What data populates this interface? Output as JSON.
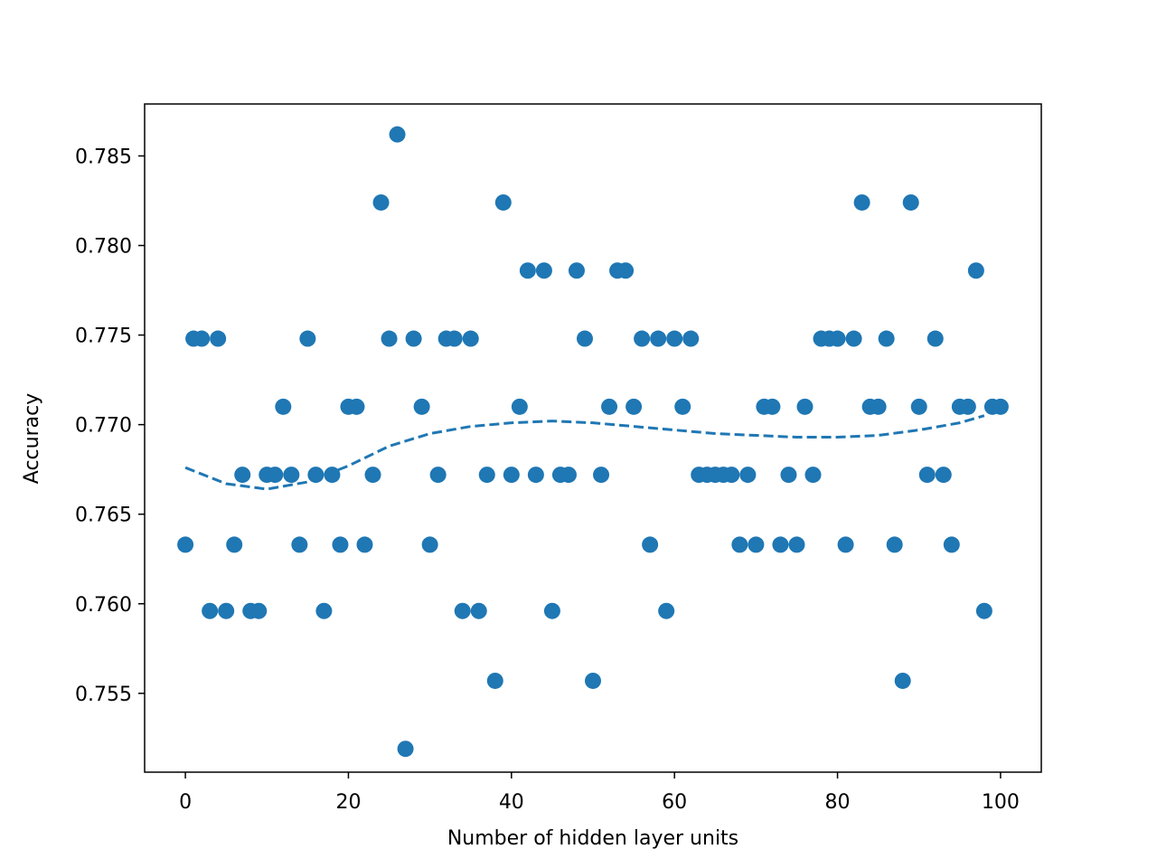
{
  "chart_data": {
    "type": "scatter",
    "xlabel": "Number of hidden layer units",
    "ylabel": "Accuracy",
    "xlim": [
      -5,
      105
    ],
    "ylim": [
      0.7506,
      0.7879
    ],
    "x_ticks": [
      0,
      20,
      40,
      60,
      80,
      100
    ],
    "x_tick_labels": [
      "0",
      "20",
      "40",
      "60",
      "80",
      "100"
    ],
    "y_ticks": [
      0.755,
      0.76,
      0.765,
      0.77,
      0.775,
      0.78,
      0.785
    ],
    "y_tick_labels": [
      "0.755",
      "0.760",
      "0.765",
      "0.770",
      "0.775",
      "0.780",
      "0.785"
    ],
    "grid": false,
    "point_color": "#1f77b4",
    "trend_color": "#1f77b4",
    "series": [
      {
        "values": [
          [
            0,
            0.7633
          ],
          [
            1,
            0.7748
          ],
          [
            2,
            0.7748
          ],
          [
            3,
            0.7596
          ],
          [
            4,
            0.7748
          ],
          [
            5,
            0.7596
          ],
          [
            6,
            0.7633
          ],
          [
            7,
            0.7672
          ],
          [
            8,
            0.7596
          ],
          [
            9,
            0.7596
          ],
          [
            10,
            0.7672
          ],
          [
            11,
            0.7672
          ],
          [
            12,
            0.771
          ],
          [
            13,
            0.7672
          ],
          [
            14,
            0.7633
          ],
          [
            15,
            0.7748
          ],
          [
            16,
            0.7672
          ],
          [
            17,
            0.7596
          ],
          [
            18,
            0.7672
          ],
          [
            19,
            0.7633
          ],
          [
            20,
            0.771
          ],
          [
            21,
            0.771
          ],
          [
            22,
            0.7633
          ],
          [
            23,
            0.7672
          ],
          [
            24,
            0.7824
          ],
          [
            25,
            0.7748
          ],
          [
            26,
            0.7862
          ],
          [
            27,
            0.7519
          ],
          [
            28,
            0.7748
          ],
          [
            29,
            0.771
          ],
          [
            30,
            0.7633
          ],
          [
            31,
            0.7672
          ],
          [
            32,
            0.7748
          ],
          [
            33,
            0.7748
          ],
          [
            34,
            0.7596
          ],
          [
            35,
            0.7748
          ],
          [
            36,
            0.7596
          ],
          [
            37,
            0.7672
          ],
          [
            38,
            0.7557
          ],
          [
            39,
            0.7824
          ],
          [
            40,
            0.7672
          ],
          [
            41,
            0.771
          ],
          [
            42,
            0.7786
          ],
          [
            43,
            0.7672
          ],
          [
            44,
            0.7786
          ],
          [
            45,
            0.7596
          ],
          [
            46,
            0.7672
          ],
          [
            47,
            0.7672
          ],
          [
            48,
            0.7786
          ],
          [
            49,
            0.7748
          ],
          [
            50,
            0.7557
          ],
          [
            51,
            0.7672
          ],
          [
            52,
            0.771
          ],
          [
            53,
            0.7786
          ],
          [
            54,
            0.7786
          ],
          [
            55,
            0.771
          ],
          [
            56,
            0.7748
          ],
          [
            57,
            0.7633
          ],
          [
            58,
            0.7748
          ],
          [
            59,
            0.7596
          ],
          [
            60,
            0.7748
          ],
          [
            61,
            0.771
          ],
          [
            62,
            0.7748
          ],
          [
            63,
            0.7672
          ],
          [
            64,
            0.7672
          ],
          [
            65,
            0.7672
          ],
          [
            66,
            0.7672
          ],
          [
            67,
            0.7672
          ],
          [
            68,
            0.7633
          ],
          [
            69,
            0.7672
          ],
          [
            70,
            0.7633
          ],
          [
            71,
            0.771
          ],
          [
            72,
            0.771
          ],
          [
            73,
            0.7633
          ],
          [
            74,
            0.7672
          ],
          [
            75,
            0.7633
          ],
          [
            76,
            0.771
          ],
          [
            77,
            0.7672
          ],
          [
            78,
            0.7748
          ],
          [
            79,
            0.7748
          ],
          [
            80,
            0.7748
          ],
          [
            81,
            0.7633
          ],
          [
            82,
            0.7748
          ],
          [
            83,
            0.7824
          ],
          [
            84,
            0.771
          ],
          [
            85,
            0.771
          ],
          [
            86,
            0.7748
          ],
          [
            87,
            0.7633
          ],
          [
            88,
            0.7557
          ],
          [
            89,
            0.7824
          ],
          [
            90,
            0.771
          ],
          [
            91,
            0.7672
          ],
          [
            92,
            0.7748
          ],
          [
            93,
            0.7672
          ],
          [
            94,
            0.7633
          ],
          [
            95,
            0.771
          ],
          [
            96,
            0.771
          ],
          [
            97,
            0.7786
          ],
          [
            98,
            0.7596
          ],
          [
            99,
            0.771
          ],
          [
            100,
            0.771
          ]
        ]
      }
    ],
    "trend_line": {
      "style": "dashed",
      "values": [
        [
          0,
          0.7676
        ],
        [
          5,
          0.7667
        ],
        [
          10,
          0.7664
        ],
        [
          15,
          0.7668
        ],
        [
          20,
          0.7677
        ],
        [
          25,
          0.7688
        ],
        [
          30,
          0.7695
        ],
        [
          35,
          0.7699
        ],
        [
          40,
          0.7701
        ],
        [
          45,
          0.7702
        ],
        [
          50,
          0.7701
        ],
        [
          55,
          0.7699
        ],
        [
          60,
          0.7697
        ],
        [
          65,
          0.7695
        ],
        [
          70,
          0.7694
        ],
        [
          75,
          0.7693
        ],
        [
          80,
          0.7693
        ],
        [
          85,
          0.7694
        ],
        [
          90,
          0.7697
        ],
        [
          95,
          0.7701
        ],
        [
          98,
          0.7705
        ]
      ]
    }
  }
}
